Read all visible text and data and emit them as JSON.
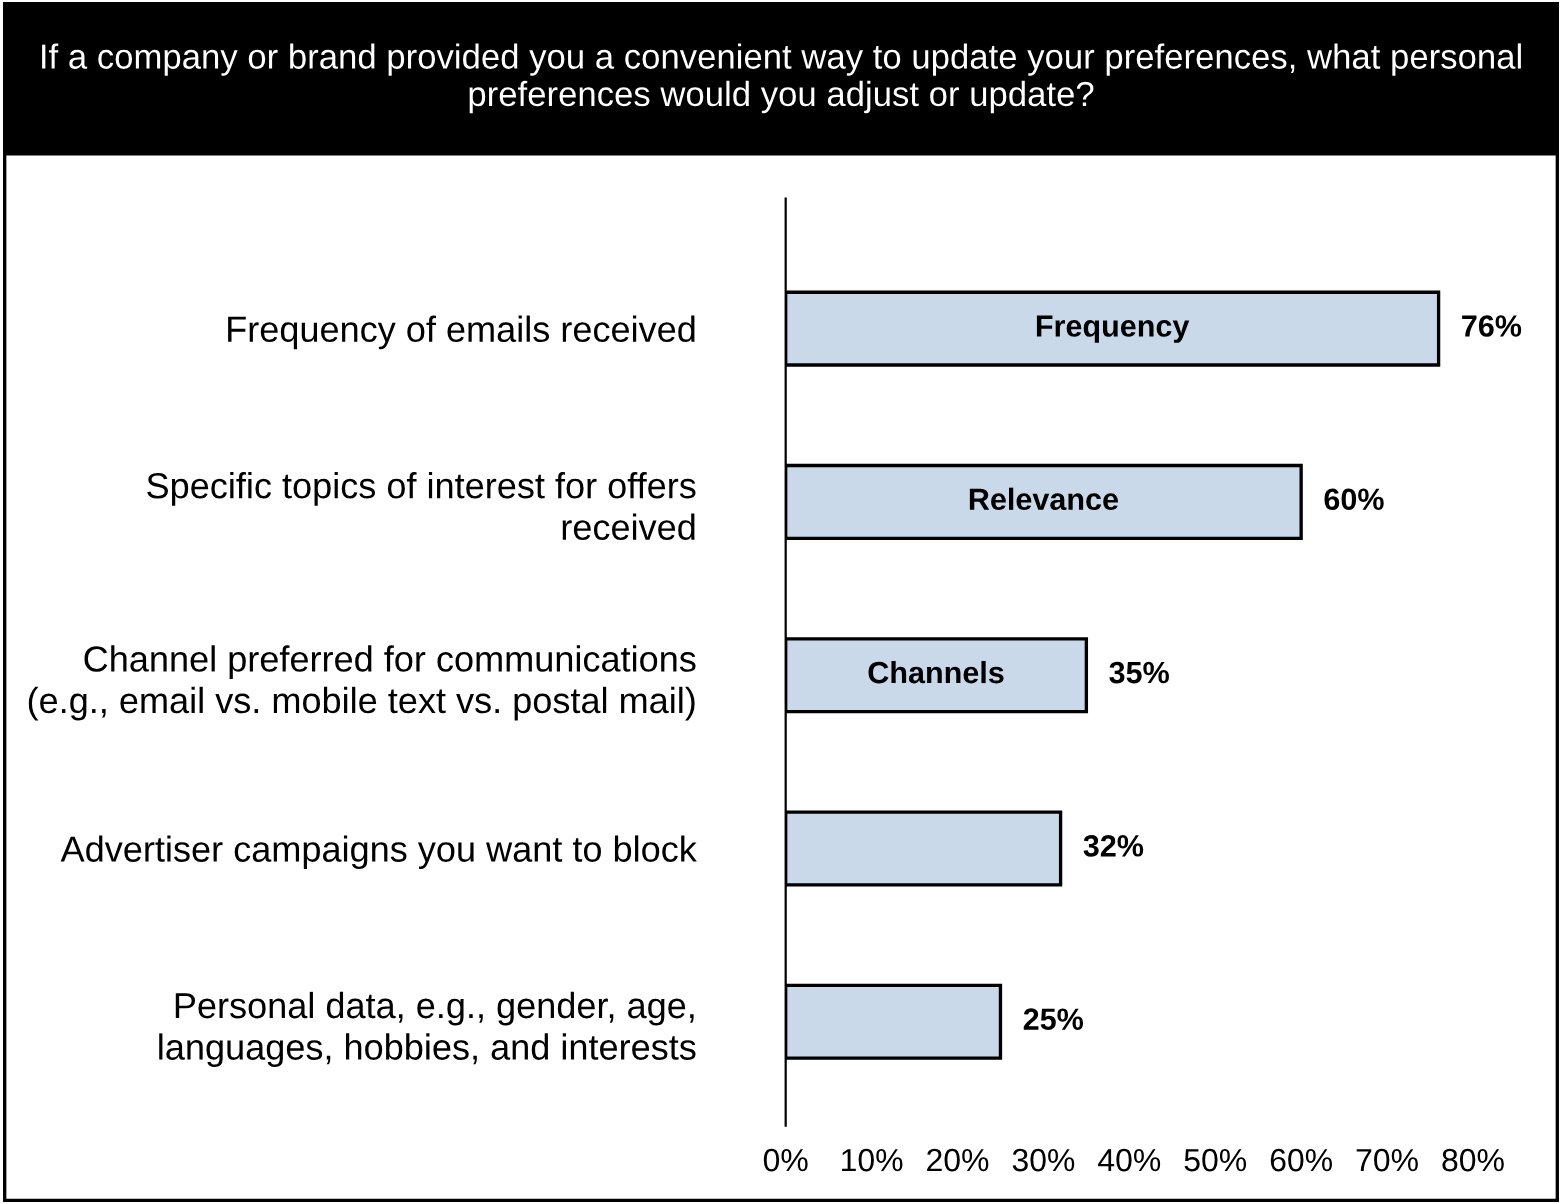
{
  "chart_data": {
    "type": "bar",
    "orientation": "horizontal",
    "title": "If a company or brand provided you a convenient way to update your preferences, what personal preferences would you adjust or update?",
    "categories": [
      "Frequency of emails received",
      "Specific topics of interest for offers\nreceived",
      "Channel preferred for communications\n(e.g., email vs. mobile text vs. postal mail)",
      "Advertiser campaigns you want to block",
      "Personal data, e.g., gender, age,\nlanguages, hobbies, and interests"
    ],
    "values": [
      76,
      60,
      35,
      32,
      25
    ],
    "value_labels": [
      "76%",
      "60%",
      "35%",
      "32%",
      "25%"
    ],
    "color": "#c9d9ea",
    "xlim": [
      0,
      80
    ],
    "xticks": [
      {
        "value": 0,
        "label": "0%"
      },
      {
        "value": 10,
        "label": "10%"
      },
      {
        "value": 20,
        "label": "20%"
      },
      {
        "value": 30,
        "label": "30%"
      },
      {
        "value": 40,
        "label": "40%"
      },
      {
        "value": 50,
        "label": "50%"
      },
      {
        "value": 60,
        "label": "60%"
      },
      {
        "value": 70,
        "label": "70%"
      },
      {
        "value": 80,
        "label": "80%"
      }
    ],
    "annotations": [
      "Frequency",
      "Relevance",
      "Channels"
    ],
    "grid": false,
    "legend": false
  }
}
